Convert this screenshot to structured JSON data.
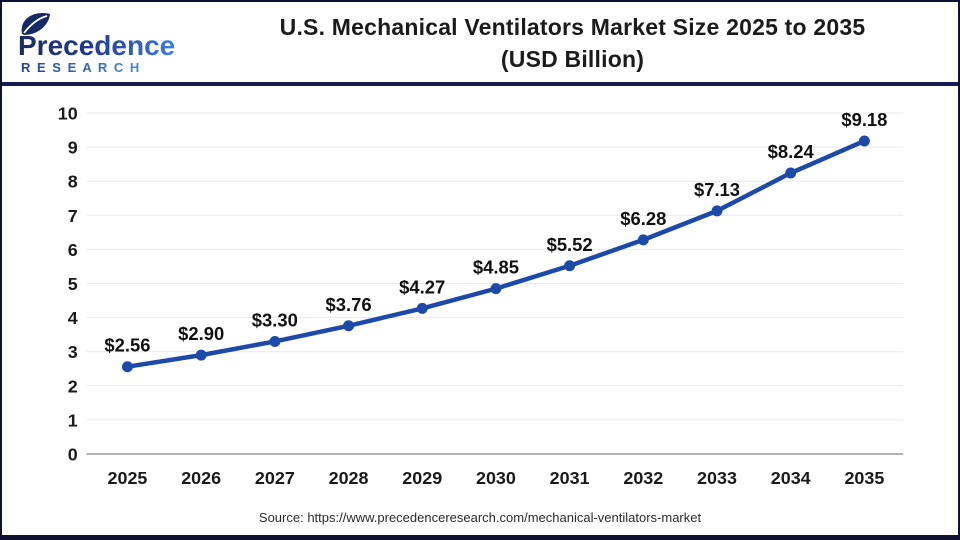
{
  "header": {
    "logo": {
      "brand": "Precedence",
      "sub": "R E S E A R C H"
    },
    "title_line1": "U.S. Mechanical Ventilators Market Size 2025 to 2035",
    "title_line2": "(USD Billion)"
  },
  "chart_data": {
    "type": "line",
    "title": "U.S. Mechanical Ventilators Market Size 2025 to 2035 (USD Billion)",
    "categories": [
      "2025",
      "2026",
      "2027",
      "2028",
      "2029",
      "2030",
      "2031",
      "2032",
      "2033",
      "2034",
      "2035"
    ],
    "series": [
      {
        "name": "U.S. Mechanical Ventilators Market Size",
        "values": [
          2.56,
          2.9,
          3.3,
          3.76,
          4.27,
          4.85,
          5.52,
          6.28,
          7.13,
          8.24,
          9.18
        ],
        "labels": [
          "$2.56",
          "$2.90",
          "$3.30",
          "$3.76",
          "$4.27",
          "$4.85",
          "$5.52",
          "$6.28",
          "$7.13",
          "$8.24",
          "$9.18"
        ]
      }
    ],
    "xlabel": "",
    "ylabel": "",
    "ylim": [
      0,
      10
    ],
    "yticks": [
      0,
      1,
      2,
      3,
      4,
      5,
      6,
      7,
      8,
      9,
      10
    ],
    "grid": "horizontal",
    "legend": "none",
    "line_color": "#1d49a8",
    "grid_color": "#e9e9e9",
    "axis_color": "#b3b3b3",
    "tick_color": "#1a1a1a",
    "label_color": "#111111"
  },
  "footer": {
    "source": "Source: https://www.precedenceresearch.com/mechanical-ventilators-market"
  }
}
